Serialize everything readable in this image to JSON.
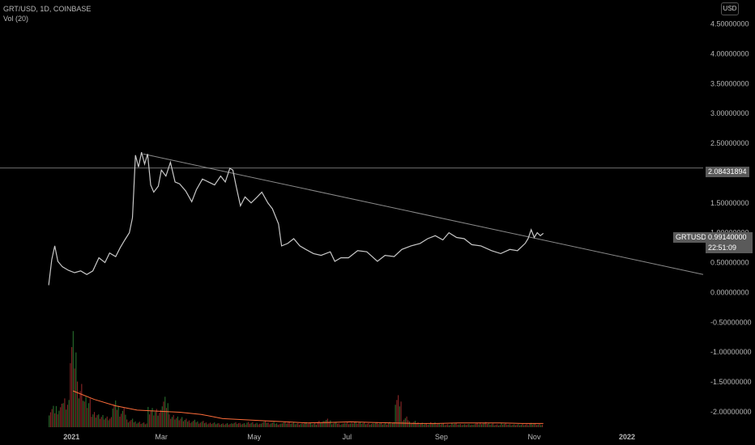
{
  "header": {
    "symbol_line": "GRT/USD, 1D, COINBASE",
    "indicator_line": "Vol (20)",
    "currency_button": "USD"
  },
  "badges": {
    "hline_value": "2.08431894",
    "ticker": "GRTUSD",
    "last_price": "0.99140000",
    "countdown": "22:51:09"
  },
  "colors": {
    "price_line": "#c8c8c8",
    "trend_line": "#8a8a8a",
    "vol_up": "#2e7d32",
    "vol_down": "#9b2b2b",
    "vol_ma": "#ff6d3a"
  },
  "chart_data": {
    "type": "line",
    "y_ticks": [
      "4.50000000",
      "4.00000000",
      "3.50000000",
      "3.00000000",
      "2.50000000",
      "2.00000000",
      "1.50000000",
      "1.00000000",
      "0.50000000",
      "0.00000000",
      "-0.50000000",
      "-1.00000000",
      "-1.50000000",
      "-2.00000000"
    ],
    "y_tick_values": [
      4.5,
      4.0,
      3.5,
      3.0,
      2.5,
      2.0,
      1.5,
      1.0,
      0.5,
      0.0,
      -0.5,
      -1.0,
      -1.5,
      -2.0
    ],
    "x_ticks": [
      "2021",
      "Mar",
      "May",
      "Jul",
      "Sep",
      "Nov",
      "2022"
    ],
    "x_tick_dates": [
      "2021-01-01",
      "2021-03-01",
      "2021-05-01",
      "2021-07-01",
      "2021-09-01",
      "2021-11-01",
      "2022-01-01"
    ],
    "x_range": [
      "2020-11-15",
      "2022-02-20"
    ],
    "ylim": [
      -2.3,
      4.9
    ],
    "price_series": {
      "name": "GRTUSD",
      "points": [
        [
          "2020-12-17",
          0.12
        ],
        [
          "2020-12-19",
          0.55
        ],
        [
          "2020-12-21",
          0.78
        ],
        [
          "2020-12-23",
          0.52
        ],
        [
          "2020-12-26",
          0.43
        ],
        [
          "2020-12-30",
          0.37
        ],
        [
          "2021-01-03",
          0.33
        ],
        [
          "2021-01-07",
          0.36
        ],
        [
          "2021-01-11",
          0.3
        ],
        [
          "2021-01-15",
          0.36
        ],
        [
          "2021-01-19",
          0.58
        ],
        [
          "2021-01-23",
          0.5
        ],
        [
          "2021-01-26",
          0.66
        ],
        [
          "2021-01-30",
          0.6
        ],
        [
          "2021-02-02",
          0.75
        ],
        [
          "2021-02-05",
          0.88
        ],
        [
          "2021-02-08",
          1.0
        ],
        [
          "2021-02-10",
          1.25
        ],
        [
          "2021-02-11",
          1.75
        ],
        [
          "2021-02-12",
          2.3
        ],
        [
          "2021-02-14",
          2.1
        ],
        [
          "2021-02-16",
          2.35
        ],
        [
          "2021-02-18",
          2.15
        ],
        [
          "2021-02-20",
          2.32
        ],
        [
          "2021-02-22",
          1.8
        ],
        [
          "2021-02-24",
          1.68
        ],
        [
          "2021-02-27",
          1.78
        ],
        [
          "2021-03-01",
          2.05
        ],
        [
          "2021-03-04",
          1.95
        ],
        [
          "2021-03-07",
          2.18
        ],
        [
          "2021-03-10",
          1.85
        ],
        [
          "2021-03-13",
          1.82
        ],
        [
          "2021-03-17",
          1.7
        ],
        [
          "2021-03-21",
          1.52
        ],
        [
          "2021-03-24",
          1.72
        ],
        [
          "2021-03-28",
          1.9
        ],
        [
          "2021-04-01",
          1.85
        ],
        [
          "2021-04-05",
          1.8
        ],
        [
          "2021-04-09",
          1.95
        ],
        [
          "2021-04-12",
          1.85
        ],
        [
          "2021-04-15",
          2.08
        ],
        [
          "2021-04-17",
          2.05
        ],
        [
          "2021-04-19",
          1.8
        ],
        [
          "2021-04-22",
          1.45
        ],
        [
          "2021-04-25",
          1.6
        ],
        [
          "2021-04-29",
          1.5
        ],
        [
          "2021-05-03",
          1.6
        ],
        [
          "2021-05-06",
          1.68
        ],
        [
          "2021-05-10",
          1.5
        ],
        [
          "2021-05-13",
          1.4
        ],
        [
          "2021-05-17",
          1.15
        ],
        [
          "2021-05-19",
          0.78
        ],
        [
          "2021-05-23",
          0.82
        ],
        [
          "2021-05-27",
          0.9
        ],
        [
          "2021-05-31",
          0.78
        ],
        [
          "2021-06-04",
          0.72
        ],
        [
          "2021-06-09",
          0.65
        ],
        [
          "2021-06-14",
          0.62
        ],
        [
          "2021-06-20",
          0.68
        ],
        [
          "2021-06-23",
          0.52
        ],
        [
          "2021-06-27",
          0.58
        ],
        [
          "2021-07-02",
          0.58
        ],
        [
          "2021-07-08",
          0.7
        ],
        [
          "2021-07-14",
          0.68
        ],
        [
          "2021-07-21",
          0.52
        ],
        [
          "2021-07-26",
          0.62
        ],
        [
          "2021-08-01",
          0.6
        ],
        [
          "2021-08-06",
          0.72
        ],
        [
          "2021-08-12",
          0.78
        ],
        [
          "2021-08-18",
          0.82
        ],
        [
          "2021-08-23",
          0.9
        ],
        [
          "2021-08-28",
          0.95
        ],
        [
          "2021-09-02",
          0.88
        ],
        [
          "2021-09-06",
          1.0
        ],
        [
          "2021-09-11",
          0.92
        ],
        [
          "2021-09-16",
          0.9
        ],
        [
          "2021-09-21",
          0.8
        ],
        [
          "2021-09-27",
          0.78
        ],
        [
          "2021-10-04",
          0.7
        ],
        [
          "2021-10-10",
          0.65
        ],
        [
          "2021-10-16",
          0.72
        ],
        [
          "2021-10-21",
          0.7
        ],
        [
          "2021-10-26",
          0.82
        ],
        [
          "2021-10-28",
          0.9
        ],
        [
          "2021-10-30",
          1.05
        ],
        [
          "2021-11-01",
          0.92
        ],
        [
          "2021-11-03",
          1.0
        ],
        [
          "2021-11-05",
          0.95
        ],
        [
          "2021-11-07",
          0.99
        ]
      ]
    },
    "trendline": {
      "from": [
        "2021-02-17",
        2.32
      ],
      "to": [
        "2022-02-20",
        0.3
      ]
    },
    "horizontal_line": 2.08431894,
    "last_price": 0.9914,
    "volume": {
      "name": "Vol (20)",
      "bars": [
        [
          0.2,
          0.22,
          0.3,
          1.0,
          0.45,
          0.3,
          0.15,
          0.12,
          0.1,
          0.25,
          0.18,
          0.08,
          0.06,
          0.05,
          0.2,
          0.18,
          0.3,
          0.12,
          0.1,
          0.08,
          0.07,
          0.06,
          0.05,
          0.05,
          0.04,
          0.04,
          0.05,
          0.04,
          0.05,
          0.04,
          0.06,
          0.05,
          0.04,
          0.06,
          0.05,
          0.04,
          0.05,
          0.04,
          0.06,
          0.08,
          0.05,
          0.04,
          0.05,
          0.06,
          0.05,
          0.04,
          0.05,
          0.04,
          0.05,
          0.3,
          0.1,
          0.06,
          0.05,
          0.04,
          0.05,
          0.04,
          0.03,
          0.04,
          0.03,
          0.03,
          0.04,
          0.05,
          0.04,
          0.03,
          0.04,
          0.03,
          0.03,
          0.03,
          0.04,
          0.03
        ]
      ],
      "ma": [
        0.34,
        0.26,
        0.2,
        0.16,
        0.15,
        0.14,
        0.12,
        0.08,
        0.07,
        0.06,
        0.05,
        0.04,
        0.045,
        0.05,
        0.045,
        0.04,
        0.035,
        0.035,
        0.04,
        0.04,
        0.04,
        0.035,
        0.035
      ]
    }
  }
}
